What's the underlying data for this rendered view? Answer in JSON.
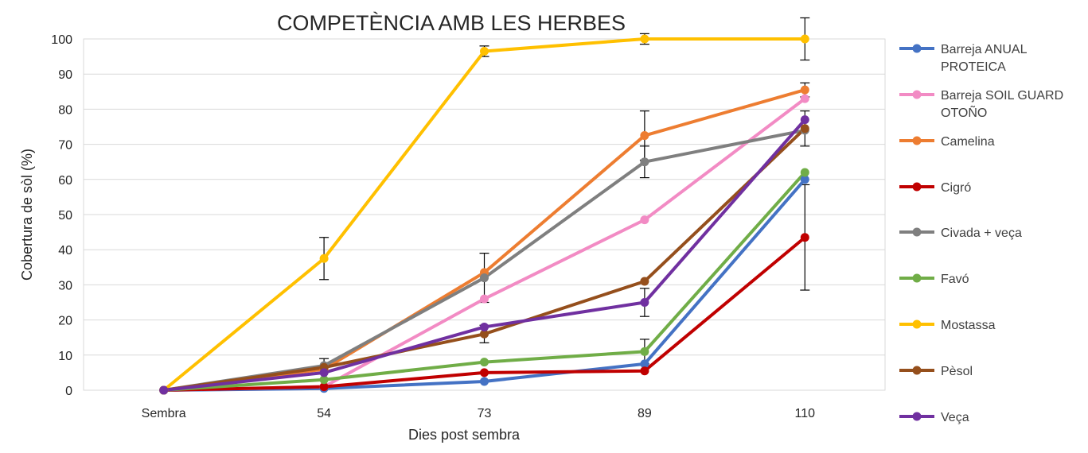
{
  "chart_data": {
    "type": "line",
    "title": "COMPETÈNCIA AMB LES HERBES",
    "xlabel": "Dies post sembra",
    "ylabel": "Cobertura de sòl (%)",
    "categories": [
      "Sembra",
      "54",
      "73",
      "89",
      "110"
    ],
    "ylim": [
      0,
      100
    ],
    "yticks": [
      "0",
      "10",
      "20",
      "30",
      "40",
      "50",
      "60",
      "70",
      "80",
      "90",
      "100"
    ],
    "grid": true,
    "legend_position": "right",
    "series": [
      {
        "name": "Barreja ANUAL PROTEICA",
        "legend_lines": [
          "Barreja ANUAL",
          "PROTEICA"
        ],
        "color": "#4472C4",
        "values": [
          0,
          0.5,
          2.5,
          7.5,
          60
        ],
        "error": [
          0,
          0,
          0,
          0,
          0
        ]
      },
      {
        "name": "Barreja SOIL GUARD OTOÑO",
        "legend_lines": [
          "Barreja SOIL GUARD",
          "OTOÑO"
        ],
        "color": "#F28BC4",
        "values": [
          0,
          1,
          26,
          48.5,
          83
        ],
        "error": [
          0,
          0,
          0,
          0,
          0
        ]
      },
      {
        "name": "Camelina",
        "legend_lines": [
          "Camelina"
        ],
        "color": "#ED7D31",
        "values": [
          0,
          6,
          33.5,
          72.5,
          85.5
        ],
        "error": [
          0,
          0,
          0,
          7,
          2
        ]
      },
      {
        "name": "Cigró",
        "legend_lines": [
          "Cigró"
        ],
        "color": "#C00000",
        "values": [
          0,
          1,
          5,
          5.5,
          43.5
        ],
        "error": [
          0,
          0,
          0,
          0,
          15
        ]
      },
      {
        "name": "Civada + veça",
        "legend_lines": [
          "Civada + veça"
        ],
        "color": "#7F7F7F",
        "values": [
          0,
          7,
          32,
          65,
          74
        ],
        "error": [
          0,
          2,
          7,
          4.5,
          0
        ]
      },
      {
        "name": "Favó",
        "legend_lines": [
          "Favó"
        ],
        "color": "#70AD47",
        "values": [
          0,
          3,
          8,
          11,
          62
        ],
        "error": [
          0,
          0,
          0,
          3.5,
          0
        ]
      },
      {
        "name": "Mostassa",
        "legend_lines": [
          "Mostassa"
        ],
        "color": "#FFC000",
        "values": [
          0,
          37.5,
          96.5,
          100,
          100
        ],
        "error": [
          0,
          6,
          1.5,
          1.5,
          6
        ]
      },
      {
        "name": "Pèsol",
        "legend_lines": [
          "Pèsol"
        ],
        "color": "#954F1C",
        "values": [
          0,
          6.5,
          16,
          31,
          74.5
        ],
        "error": [
          0,
          0,
          2.5,
          0,
          5
        ]
      },
      {
        "name": "Veça",
        "legend_lines": [
          "Veça"
        ],
        "color": "#7030A0",
        "values": [
          0,
          5,
          18,
          25,
          77
        ],
        "error": [
          0,
          0,
          0,
          4,
          0
        ]
      }
    ]
  }
}
